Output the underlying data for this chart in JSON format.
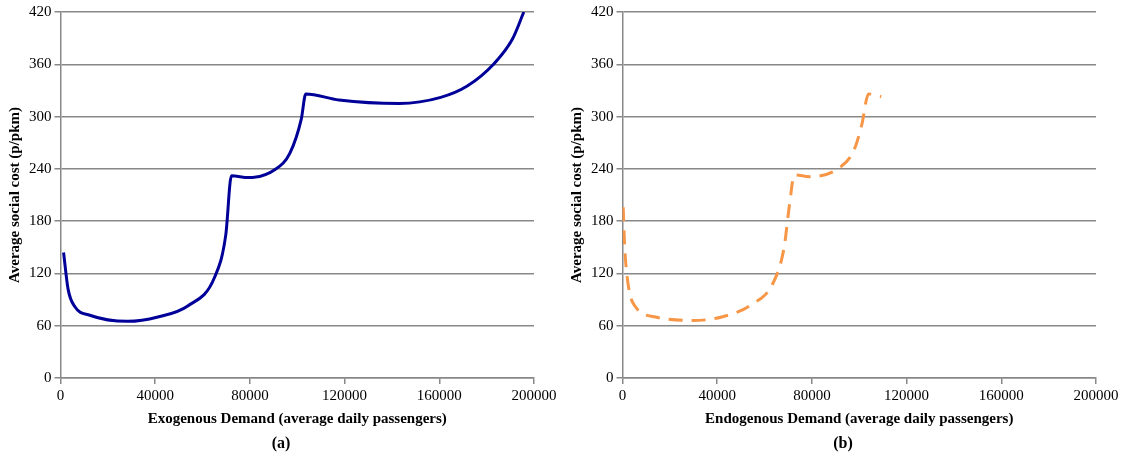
{
  "chart_data": [
    {
      "type": "line",
      "xlabel": "Exogenous Demand (average daily passengers)",
      "ylabel": "Average social cost (p/pkm)",
      "annotations": [
        "(a)"
      ],
      "xlim": [
        0,
        200000
      ],
      "xticks": [
        0,
        40000,
        80000,
        120000,
        160000,
        200000
      ],
      "ylim": [
        0,
        420
      ],
      "yticks": [
        0,
        60,
        120,
        180,
        240,
        300,
        360,
        420
      ],
      "grid": "y",
      "marker": "none",
      "line_style": "solid",
      "series": [
        {
          "color": "#000099",
          "x": [
            1300,
            3200,
            6000,
            12400,
            28400,
            41100,
            53900,
            65000,
            69800,
            72200,
            79400,
            90500,
            96900,
            101700,
            103600,
            117600,
            143100,
            160600,
            171800,
            182900,
            190900,
            195700
          ],
          "values": [
            144,
            102,
            82,
            72,
            65,
            70,
            83,
            115,
            164,
            232,
            230,
            239,
            258,
            297,
            326,
            319,
            315,
            322,
            335,
            360,
            389,
            420
          ]
        }
      ]
    },
    {
      "type": "line",
      "xlabel": "Endogenous Demand (average daily passengers)",
      "ylabel": "Average social cost (p/pkm)",
      "annotations": [
        "(b)"
      ],
      "xlim": [
        0,
        200000
      ],
      "xticks": [
        0,
        40000,
        80000,
        120000,
        160000,
        200000
      ],
      "ylim": [
        0,
        420
      ],
      "yticks": [
        0,
        60,
        120,
        180,
        240,
        300,
        360,
        420
      ],
      "grid": "y",
      "marker": "none",
      "line_style": "dashed",
      "series": [
        {
          "color": "#f79646",
          "x": [
            300,
            800,
            2300,
            5400,
            14000,
            29500,
            41900,
            54300,
            63600,
            68200,
            70500,
            72600,
            79100,
            91500,
            97700,
            101100,
            103900,
            109300
          ],
          "values": [
            196,
            157,
            109,
            82,
            70,
            66,
            70,
            84,
            109,
            149,
            198,
            233,
            231,
            241,
            261,
            291,
            326,
            323
          ]
        }
      ]
    }
  ]
}
